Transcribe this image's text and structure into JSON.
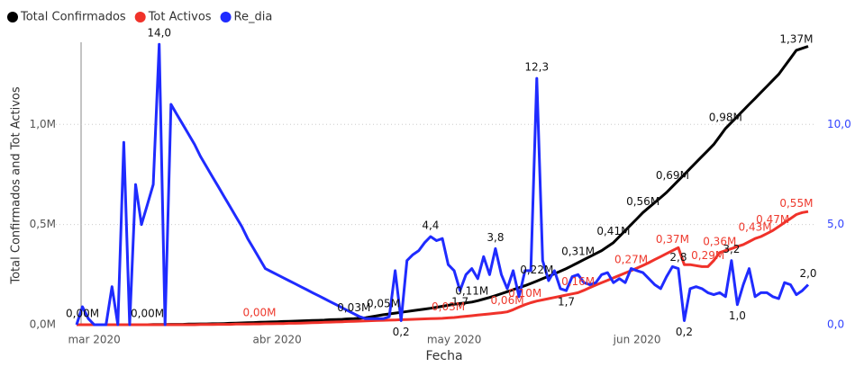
{
  "chart_data": {
    "type": "line",
    "xlabel": "Fecha",
    "ylabel": "Total Confirmados and Tot Activos",
    "categories": [
      null,
      null,
      null,
      "mar 2020",
      null,
      null,
      null,
      null,
      null,
      null,
      null,
      null,
      null,
      null,
      null,
      null,
      null,
      null,
      null,
      null,
      null,
      null,
      null,
      null,
      null,
      null,
      null,
      null,
      null,
      null,
      null,
      null,
      null,
      null,
      "abr 2020",
      null,
      null,
      null,
      null,
      null,
      null,
      null,
      null,
      null,
      null,
      null,
      null,
      null,
      null,
      null,
      null,
      null,
      null,
      null,
      null,
      null,
      null,
      null,
      null,
      null,
      null,
      null,
      null,
      null,
      "may 2020",
      null,
      null,
      null,
      null,
      null,
      null,
      null,
      null,
      null,
      null,
      null,
      null,
      null,
      null,
      null,
      null,
      null,
      null,
      null,
      null,
      null,
      null,
      null,
      null,
      null,
      null,
      null,
      null,
      null,
      null,
      "jun 2020",
      null,
      null,
      null,
      null,
      null,
      null,
      null,
      null,
      null,
      null,
      null,
      null,
      null,
      null,
      null,
      null,
      null,
      null,
      null,
      null,
      null,
      null,
      null,
      null,
      null,
      null,
      null,
      null,
      null
    ],
    "ylim": [
      0,
      1.41
    ],
    "yticks": [
      {
        "value": 0,
        "label": "0,0M"
      },
      {
        "value": 0.5,
        "label": "0,5M"
      },
      {
        "value": 1,
        "label": "1,0M"
      }
    ],
    "y2lim": [
      0,
      14.1
    ],
    "y2ticks": [
      {
        "value": 0,
        "label": "0,0"
      },
      {
        "value": 5,
        "label": "5,0"
      },
      {
        "value": 10,
        "label": "10,0"
      }
    ],
    "grid": true,
    "legend": "top-left",
    "series": [
      {
        "name": "Total Confirmados",
        "color": "#000000",
        "label_color": "#111111",
        "values": [
          0,
          0,
          0,
          0,
          0,
          0,
          0,
          0,
          0,
          0,
          0,
          0,
          0,
          0.001,
          0.001,
          0.001,
          0.002,
          0.002,
          0.002,
          0.003,
          0.003,
          0.004,
          0.004,
          0.005,
          0.005,
          0.006,
          0.007,
          0.008,
          0.009,
          0.01,
          0.011,
          0.012,
          0.013,
          0.014,
          0.015,
          0.016,
          0.017,
          0.018,
          0.019,
          0.02,
          0.021,
          0.022,
          0.023,
          0.025,
          0.026,
          0.027,
          0.029,
          0.03,
          0.032,
          0.035,
          0.04,
          0.045,
          0.05,
          0.054,
          0.058,
          0.062,
          0.066,
          0.07,
          0.074,
          0.078,
          0.082,
          0.087,
          0.092,
          0.097,
          0.102,
          0.106,
          0.109,
          0.113,
          0.12,
          0.128,
          0.136,
          0.145,
          0.155,
          0.165,
          0.175,
          0.185,
          0.195,
          0.206,
          0.218,
          0.23,
          0.242,
          0.254,
          0.267,
          0.28,
          0.295,
          0.31,
          0.325,
          0.34,
          0.355,
          0.37,
          0.39,
          0.41,
          0.44,
          0.47,
          0.5,
          0.53,
          0.56,
          0.585,
          0.61,
          0.635,
          0.66,
          0.69,
          0.72,
          0.75,
          0.78,
          0.81,
          0.84,
          0.87,
          0.9,
          0.94,
          0.98,
          1.01,
          1.04,
          1.07,
          1.1,
          1.13,
          1.16,
          1.19,
          1.22,
          1.25,
          1.29,
          1.33,
          1.37,
          1.38,
          1.39
        ],
        "value_labels": [
          null,
          "0,00M",
          null,
          null,
          null,
          null,
          null,
          null,
          null,
          null,
          null,
          null,
          "0,00M",
          null,
          null,
          null,
          null,
          null,
          null,
          null,
          null,
          null,
          null,
          null,
          null,
          null,
          null,
          null,
          null,
          null,
          null,
          null,
          null,
          null,
          null,
          null,
          null,
          null,
          null,
          null,
          null,
          null,
          null,
          null,
          null,
          null,
          null,
          "0,03M",
          null,
          null,
          null,
          null,
          "0,05M",
          null,
          null,
          null,
          null,
          null,
          null,
          null,
          null,
          null,
          null,
          null,
          null,
          null,
          null,
          "0,11M",
          null,
          null,
          null,
          null,
          null,
          null,
          null,
          null,
          null,
          null,
          "0,22M",
          null,
          null,
          null,
          null,
          null,
          null,
          "0,31M",
          null,
          null,
          null,
          null,
          null,
          "0,41M",
          null,
          null,
          null,
          null,
          "0,56M",
          null,
          null,
          null,
          null,
          "0,69M",
          null,
          null,
          null,
          null,
          null,
          null,
          null,
          null,
          "0,98M",
          null,
          null,
          null,
          null,
          null,
          null,
          null,
          null,
          null,
          null,
          null,
          "1,37M",
          null,
          null
        ]
      },
      {
        "name": "Tot Activos",
        "color": "#f0322a",
        "label_color": "#ee3a2e",
        "values": [
          0,
          0,
          0,
          0,
          0,
          0,
          0,
          0,
          0,
          0,
          0,
          0,
          0,
          0,
          0,
          0,
          0,
          0,
          0,
          0,
          0,
          0.001,
          0.001,
          0.001,
          0.002,
          0.002,
          0.002,
          0.003,
          0.003,
          0.003,
          0.004,
          0.004,
          0.005,
          0.005,
          0.006,
          0.006,
          0.007,
          0.007,
          0.008,
          0.009,
          0.01,
          0.011,
          0.012,
          0.013,
          0.014,
          0.015,
          0.016,
          0.017,
          0.018,
          0.019,
          0.02,
          0.021,
          0.022,
          0.023,
          0.024,
          0.025,
          0.026,
          0.027,
          0.028,
          0.029,
          0.03,
          0.031,
          0.032,
          0.034,
          0.036,
          0.039,
          0.042,
          0.045,
          0.048,
          0.051,
          0.054,
          0.057,
          0.06,
          0.064,
          0.075,
          0.088,
          0.1,
          0.11,
          0.118,
          0.124,
          0.13,
          0.136,
          0.142,
          0.148,
          0.154,
          0.16,
          0.172,
          0.185,
          0.198,
          0.21,
          0.222,
          0.234,
          0.246,
          0.258,
          0.27,
          0.283,
          0.296,
          0.31,
          0.325,
          0.34,
          0.355,
          0.37,
          0.385,
          0.3,
          0.3,
          0.295,
          0.29,
          0.29,
          0.32,
          0.36,
          0.37,
          0.38,
          0.39,
          0.4,
          0.415,
          0.43,
          0.44,
          0.455,
          0.47,
          0.49,
          0.51,
          0.53,
          0.55,
          0.56,
          0.565
        ],
        "value_labels": [
          null,
          null,
          null,
          null,
          null,
          null,
          null,
          null,
          null,
          null,
          null,
          null,
          null,
          null,
          null,
          null,
          null,
          null,
          null,
          null,
          null,
          null,
          null,
          null,
          null,
          null,
          null,
          null,
          null,
          null,
          null,
          "0,00M",
          null,
          null,
          null,
          null,
          null,
          null,
          null,
          null,
          null,
          null,
          null,
          null,
          null,
          null,
          null,
          null,
          null,
          null,
          null,
          null,
          null,
          null,
          null,
          null,
          null,
          null,
          null,
          null,
          null,
          null,
          null,
          "0,03M",
          null,
          null,
          null,
          null,
          null,
          null,
          null,
          null,
          null,
          "0,06M",
          null,
          null,
          "0,10M",
          null,
          null,
          null,
          null,
          null,
          null,
          null,
          null,
          "0,16M",
          null,
          null,
          null,
          null,
          null,
          null,
          null,
          null,
          "0,27M",
          null,
          null,
          null,
          null,
          null,
          null,
          "0,37M",
          null,
          null,
          null,
          null,
          null,
          "0,29M",
          null,
          "0,36M",
          null,
          null,
          null,
          null,
          null,
          "0,43M",
          null,
          null,
          "0,47M",
          null,
          null,
          null,
          "0,55M",
          null,
          null
        ]
      },
      {
        "name": "Re_dia",
        "color": "#1f2bff",
        "label_color": "#111111",
        "axis": "y2",
        "values": [
          0,
          0.9,
          0.3,
          0,
          0,
          0,
          1.9,
          0,
          9.1,
          0,
          7,
          5,
          6,
          7,
          14,
          0,
          11,
          10.5,
          10,
          9.5,
          9,
          8.4,
          7.9,
          7.4,
          6.9,
          6.4,
          5.9,
          5.4,
          4.9,
          4.3,
          3.8,
          3.3,
          2.8,
          2.65,
          2.5,
          2.35,
          2.2,
          2.05,
          1.9,
          1.75,
          1.6,
          1.45,
          1.3,
          1.15,
          1,
          0.85,
          0.7,
          0.55,
          0.4,
          0.3,
          0.3,
          0.3,
          0.3,
          0.4,
          2.7,
          0.2,
          3.2,
          3.5,
          3.7,
          4.1,
          4.4,
          4.2,
          4.3,
          3,
          2.7,
          1.7,
          2.5,
          2.8,
          2.3,
          3.4,
          2.5,
          3.8,
          2.5,
          1.8,
          2.7,
          1.4,
          2.7,
          2.7,
          12.3,
          3.2,
          2.2,
          2.7,
          1.8,
          1.7,
          2.4,
          2.5,
          2.1,
          2,
          2.1,
          2.5,
          2.6,
          2.1,
          2.3,
          2.1,
          2.8,
          2.7,
          2.6,
          2.3,
          2,
          1.8,
          2.4,
          2.9,
          2.8,
          0.2,
          1.8,
          1.9,
          1.8,
          1.6,
          1.5,
          1.6,
          1.4,
          3.2,
          1,
          2,
          2.8,
          1.4,
          1.6,
          1.6,
          1.4,
          1.3,
          2.1,
          2,
          1.5,
          1.7,
          2
        ],
        "value_labels": [
          null,
          null,
          null,
          null,
          null,
          null,
          null,
          null,
          null,
          null,
          null,
          null,
          null,
          null,
          "14,0",
          null,
          null,
          null,
          null,
          null,
          null,
          null,
          null,
          null,
          null,
          null,
          null,
          null,
          null,
          null,
          null,
          null,
          null,
          null,
          null,
          null,
          null,
          null,
          null,
          null,
          null,
          null,
          null,
          null,
          null,
          null,
          null,
          null,
          null,
          null,
          null,
          null,
          null,
          null,
          null,
          "0,2",
          null,
          null,
          null,
          null,
          "4,4",
          null,
          null,
          null,
          null,
          "1,7",
          null,
          null,
          null,
          null,
          null,
          "3,8",
          null,
          null,
          null,
          null,
          null,
          null,
          "12,3",
          null,
          null,
          null,
          null,
          "1,7",
          null,
          null,
          null,
          null,
          null,
          null,
          null,
          null,
          null,
          null,
          null,
          null,
          null,
          null,
          null,
          null,
          null,
          null,
          "2,8",
          "0,2",
          null,
          null,
          null,
          null,
          null,
          null,
          null,
          "3,2",
          "1,0",
          null,
          null,
          null,
          null,
          null,
          null,
          null,
          null,
          null,
          null,
          null,
          "2,0"
        ]
      }
    ]
  }
}
